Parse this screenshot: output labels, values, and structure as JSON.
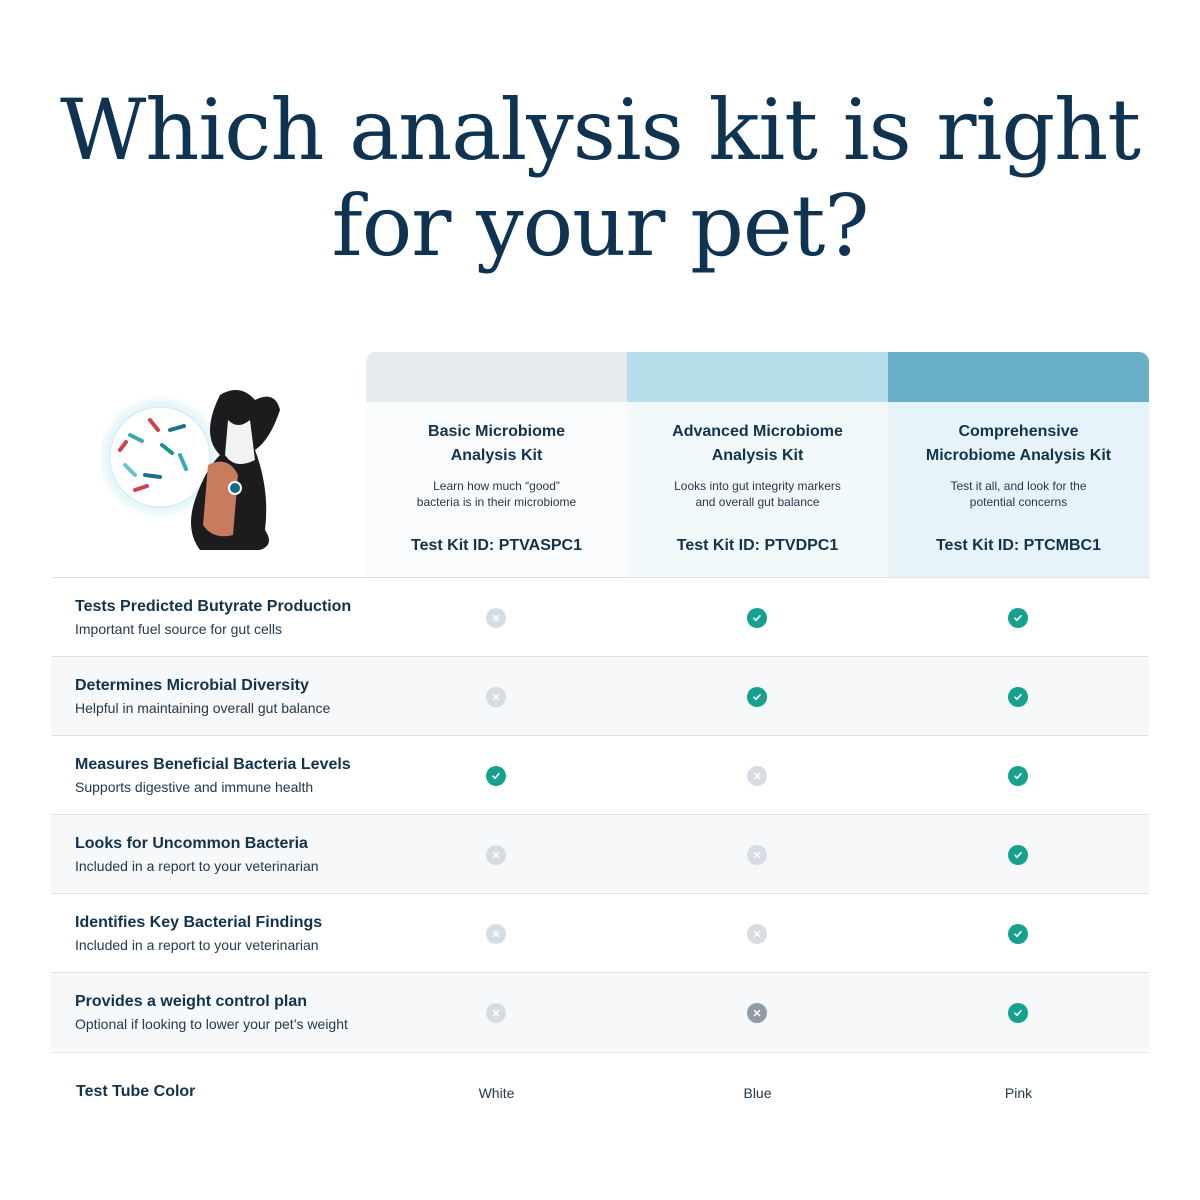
{
  "title": [
    "Which analysis kit is right",
    "for your pet?"
  ],
  "colors": {
    "basic_band": "#e5eaed",
    "advanced_band": "#b7dfeb",
    "comprehensive_band": "#6aafc8",
    "check": "#16a08e",
    "cross": "#d6dde2"
  },
  "illustration": "dog-with-microbiome-circle",
  "kits": [
    {
      "name": [
        "Basic Microbiome",
        "Analysis Kit"
      ],
      "desc": [
        "Learn how much “good”",
        "bacteria is in their microbiome"
      ],
      "id": "Test Kit ID: PTVASPC1",
      "tube": "White"
    },
    {
      "name": [
        "Advanced Microbiome",
        "Analysis Kit"
      ],
      "desc": [
        "Looks into gut integrity markers",
        "and overall gut balance"
      ],
      "id": "Test Kit ID: PTVDPC1",
      "tube": "Blue"
    },
    {
      "name": [
        "Comprehensive",
        "Microbiome Analysis Kit"
      ],
      "desc": [
        "Test it all, and look for the",
        "potential concerns"
      ],
      "id": "Test Kit ID: PTCMBC1",
      "tube": "Pink"
    }
  ],
  "features": [
    {
      "title": "Tests Predicted Butyrate Production",
      "sub": "Important fuel source for gut cells",
      "values": [
        "no",
        "yes",
        "yes"
      ]
    },
    {
      "title": "Determines Microbial Diversity",
      "sub": "Helpful in maintaining overall gut balance",
      "values": [
        "no",
        "yes",
        "yes"
      ]
    },
    {
      "title": "Measures Beneficial Bacteria Levels",
      "sub": "Supports digestive and immune health",
      "values": [
        "yes",
        "no",
        "yes"
      ]
    },
    {
      "title": "Looks for Uncommon Bacteria",
      "sub": "Included in a report to your veterinarian",
      "values": [
        "no",
        "no",
        "yes"
      ]
    },
    {
      "title": "Identifies Key Bacterial Findings",
      "sub": "Included in a report to your veterinarian",
      "values": [
        "no",
        "no",
        "yes"
      ]
    },
    {
      "title": "Provides a weight control plan",
      "sub": "Optional if looking to lower your pet’s weight",
      "values": [
        "no",
        "no-dark",
        "yes"
      ]
    }
  ],
  "footer": {
    "label": "Test Tube Color"
  }
}
